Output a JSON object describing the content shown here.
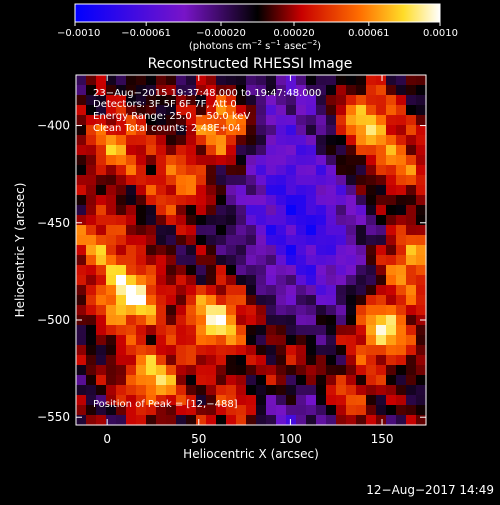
{
  "chart_data": {
    "type": "heatmap",
    "title": "Reconstructed RHESSI Image",
    "xlabel": "Heliocentric X (arcsec)",
    "ylabel": "Heliocentric Y (arcsec)",
    "xlim": [
      -17,
      174
    ],
    "ylim": [
      -554,
      -374
    ],
    "xticks": [
      0,
      50,
      100,
      150
    ],
    "yticks": [
      -400,
      -450,
      -500,
      -550
    ],
    "colorbar": {
      "vmin": -0.001,
      "vmax": 0.001,
      "ticks": [
        {
          "value": -0.001,
          "label": "−0.0010"
        },
        {
          "value": -0.00061,
          "label": "−0.00061"
        },
        {
          "value": -0.0002,
          "label": "−0.00020"
        },
        {
          "value": 0.0002,
          "label": "0.00020"
        },
        {
          "value": 0.00061,
          "label": "0.00061"
        },
        {
          "value": 0.001,
          "label": "0.0010"
        }
      ],
      "label_main": "(photons cm",
      "label_exp1": "−2",
      "label_mid1": " s",
      "label_exp2": "−1",
      "label_mid2": " asec",
      "label_exp3": "−2",
      "label_end": ")"
    },
    "annotations": {
      "time_range": "23−Aug−2015 19:37:48.000 to 19:47:48.000",
      "detectors": "Detectors: 3F 5F 6F 7F, Att 0",
      "energy": "Energy Range: 25.0 − 50.0 keV",
      "clean": "Clean     Total counts: 2.48E+04",
      "peak": "Position of Peak = [12,−488]"
    },
    "peak": {
      "x": 12,
      "y": -488
    },
    "blobs": [
      {
        "x": 12,
        "y": -488,
        "amp": 1.0
      },
      {
        "x": 60,
        "y": -500,
        "amp": 0.92
      },
      {
        "x": 150,
        "y": -505,
        "amp": 0.88
      },
      {
        "x": 165,
        "y": -470,
        "amp": 0.7
      },
      {
        "x": 25,
        "y": -530,
        "amp": 0.75
      },
      {
        "x": 65,
        "y": -400,
        "amp": 0.85
      },
      {
        "x": 140,
        "y": -398,
        "amp": 0.8
      },
      {
        "x": 40,
        "y": -430,
        "amp": 0.55
      },
      {
        "x": 5,
        "y": -410,
        "amp": 0.6
      },
      {
        "x": 100,
        "y": -525,
        "amp": 0.55
      },
      {
        "x": 130,
        "y": -540,
        "amp": 0.65
      },
      {
        "x": 70,
        "y": -545,
        "amp": 0.5
      },
      {
        "x": 160,
        "y": -420,
        "amp": 0.5
      },
      {
        "x": -5,
        "y": -460,
        "amp": 0.55
      }
    ],
    "cold_spots": [
      {
        "x": 100,
        "y": -440,
        "amp": -0.55
      },
      {
        "x": 115,
        "y": -470,
        "amp": -0.45
      },
      {
        "x": 105,
        "y": -545,
        "amp": -0.55
      },
      {
        "x": 95,
        "y": -395,
        "amp": -0.4
      }
    ]
  },
  "footer": {
    "timestamp": "12−Aug−2017 14:49"
  }
}
